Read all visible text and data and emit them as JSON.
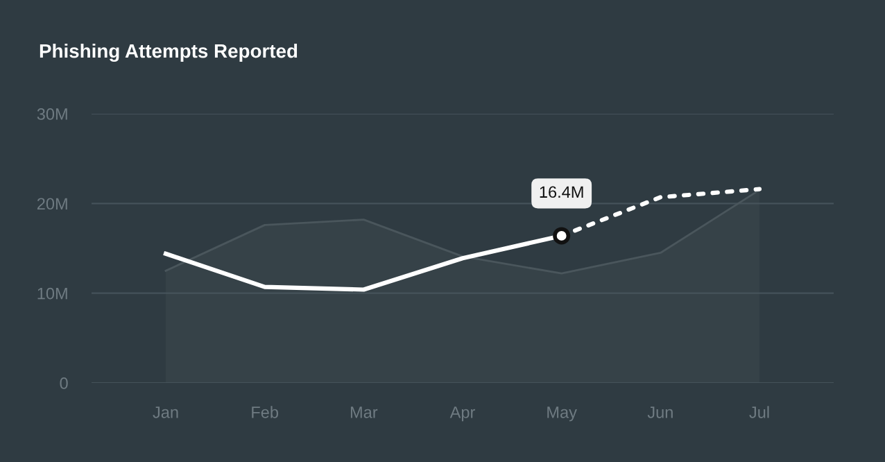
{
  "chart_data": {
    "type": "line",
    "title": "Phishing Attempts Reported",
    "categories": [
      "Jan",
      "Feb",
      "Mar",
      "Apr",
      "May",
      "Jun",
      "Jul"
    ],
    "ylim": [
      0,
      30
    ],
    "yticks": [
      {
        "value": 0,
        "label": "0"
      },
      {
        "value": 10,
        "label": "10M"
      },
      {
        "value": 20,
        "label": "20M"
      },
      {
        "value": 30,
        "label": "30M"
      }
    ],
    "grid": "y",
    "series": [
      {
        "type": "area",
        "color": "#4a565c",
        "values": [
          12.5,
          17.6,
          18.2,
          14.1,
          12.2,
          14.5,
          21.5
        ]
      },
      {
        "color": "#ffffff",
        "line_style": "dotted",
        "values": [
          null,
          null,
          null,
          null,
          16.4,
          20.7,
          21.6
        ]
      },
      {
        "color": "#ffffff",
        "line_style": "solid",
        "values": [
          14.4,
          10.7,
          10.4,
          13.9,
          16.4,
          null,
          null
        ],
        "value_labels": [
          null,
          null,
          null,
          null,
          "16.4M",
          null,
          null
        ]
      }
    ]
  }
}
